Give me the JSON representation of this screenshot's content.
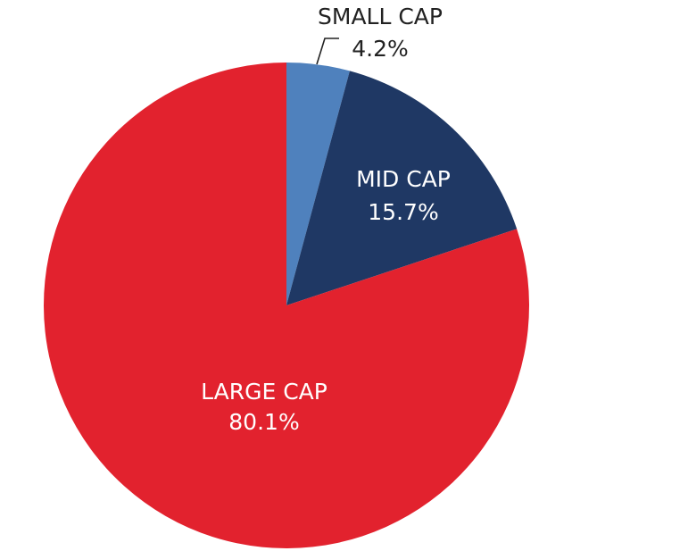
{
  "chart_data": {
    "type": "pie",
    "title": "",
    "start_angle_deg": 0,
    "direction": "clockwise",
    "slices": [
      {
        "label": "SMALL CAP",
        "value": 4.2,
        "value_label": "4.2%",
        "color": "#4f81bd",
        "label_color": "#222222",
        "label_position": "outside"
      },
      {
        "label": "MID CAP",
        "value": 15.7,
        "value_label": "15.7%",
        "color": "#1f3864",
        "label_color": "#ffffff",
        "label_position": "inside"
      },
      {
        "label": "LARGE CAP",
        "value": 80.1,
        "value_label": "80.1%",
        "color": "#e2222e",
        "label_color": "#ffffff",
        "label_position": "inside"
      }
    ]
  }
}
